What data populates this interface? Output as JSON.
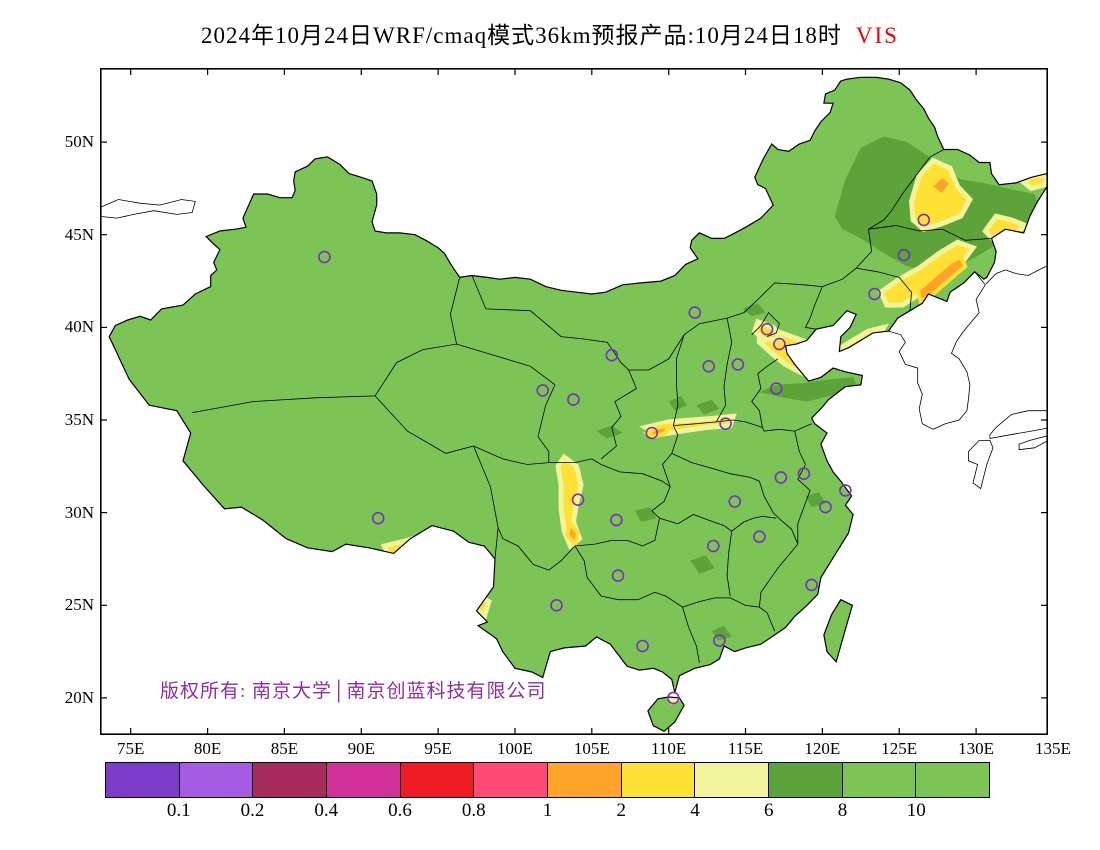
{
  "title": {
    "main": "2024年10月24日WRF/cmaq模式36km预报产品:10月24日18时",
    "highlight": "VIS"
  },
  "map": {
    "copyright": "版权所有: 南京大学│南京创蓝科技有限公司",
    "lat_ticks": [
      {
        "label": "50N",
        "deg": 50
      },
      {
        "label": "45N",
        "deg": 45
      },
      {
        "label": "40N",
        "deg": 40
      },
      {
        "label": "35N",
        "deg": 35
      },
      {
        "label": "30N",
        "deg": 30
      },
      {
        "label": "25N",
        "deg": 25
      },
      {
        "label": "20N",
        "deg": 20
      }
    ],
    "lon_ticks": [
      {
        "label": "75E",
        "deg": 75
      },
      {
        "label": "80E",
        "deg": 80
      },
      {
        "label": "85E",
        "deg": 85
      },
      {
        "label": "90E",
        "deg": 90
      },
      {
        "label": "95E",
        "deg": 95
      },
      {
        "label": "100E",
        "deg": 100
      },
      {
        "label": "105E",
        "deg": 105
      },
      {
        "label": "110E",
        "deg": 110
      },
      {
        "label": "115E",
        "deg": 115
      },
      {
        "label": "120E",
        "deg": 120
      },
      {
        "label": "125E",
        "deg": 125
      },
      {
        "label": "130E",
        "deg": 130
      },
      {
        "label": "135E",
        "deg": 135
      }
    ]
  },
  "colors": {
    "base_green": "#7CC455",
    "dark_green": "#5CA339",
    "yellow": "#FFE135",
    "pale_yellow": "#F2F49B",
    "orange": "#FFA428",
    "red": "#F42525",
    "marker_purple": "#7B2FBE",
    "copyright_purple": "#8A2FA8",
    "title_red": "#F50000",
    "line_black": "#000000",
    "ocean_white": "#FFFFFF"
  },
  "colorbar": {
    "labels": [
      "0.1",
      "0.2",
      "0.4",
      "0.6",
      "0.8",
      "1",
      "2",
      "4",
      "6",
      "8",
      "10"
    ],
    "colors": [
      "#7C3BC8",
      "#A55BE2",
      "#A62D5B",
      "#D23099",
      "#EF1C24",
      "#FF4A78",
      "#FFA428",
      "#FFE135",
      "#F2F49B",
      "#5CA339",
      "#7CC455",
      "#7CC455"
    ]
  },
  "chart_data": {
    "type": "heatmap",
    "title": "2024年10月24日WRF/cmaq模式36km预报产品:10月24日18时 VIS",
    "variable": "VIS",
    "model": "WRF/cmaq 36km",
    "forecast_date": "2024年10月24日",
    "valid_time": "10月24日18时",
    "lon_range": [
      73,
      135
    ],
    "lat_range": [
      18,
      54
    ],
    "lon_tick_labels": [
      "75E",
      "80E",
      "85E",
      "90E",
      "95E",
      "100E",
      "105E",
      "110E",
      "115E",
      "120E",
      "125E",
      "130E",
      "135E"
    ],
    "lat_tick_labels": [
      "50N",
      "45N",
      "40N",
      "35N",
      "30N",
      "25N",
      "20N"
    ],
    "levels": [
      0.1,
      0.2,
      0.4,
      0.6,
      0.8,
      1,
      2,
      4,
      6,
      8,
      10
    ],
    "level_colors": [
      "#7C3BC8",
      "#A55BE2",
      "#A62D5B",
      "#D23099",
      "#EF1C24",
      "#FF4A78",
      "#FFA428",
      "#FFE135",
      "#F2F49B",
      "#5CA339",
      "#7CC455",
      "#7CC455"
    ],
    "background_value": ">10 (green over most of China)",
    "low_visibility_regions": [
      {
        "region": "Northeast China plain (Heilongjiang/Jilin)",
        "vis_km": "2-8"
      },
      {
        "region": "Jilin-Liaoning border belt",
        "vis_km": "1-4"
      },
      {
        "region": "Hebei/Tianjin Bohai rim",
        "vis_km": "2-6"
      },
      {
        "region": "Shandong band",
        "vis_km": "6-8"
      },
      {
        "region": "Fenwei plain (S Shanxi / Guanzhong / N Henan)",
        "vis_km": "1-4"
      },
      {
        "region": "Western Sichuan basin edge",
        "vis_km": "1-4"
      },
      {
        "region": "Southeast Tibet valleys",
        "vis_km": "0.6-4"
      }
    ],
    "markers_lonlat": [
      [
        87.6,
        43.8
      ],
      [
        126.6,
        45.8
      ],
      [
        125.3,
        43.9
      ],
      [
        123.4,
        41.8
      ],
      [
        111.7,
        40.8
      ],
      [
        116.4,
        39.9
      ],
      [
        117.2,
        39.1
      ],
      [
        114.5,
        38.0
      ],
      [
        112.6,
        37.9
      ],
      [
        117.0,
        36.7
      ],
      [
        106.3,
        38.5
      ],
      [
        101.8,
        36.6
      ],
      [
        103.8,
        36.1
      ],
      [
        108.9,
        34.3
      ],
      [
        113.7,
        34.8
      ],
      [
        117.3,
        31.9
      ],
      [
        118.8,
        32.1
      ],
      [
        121.5,
        31.2
      ],
      [
        120.2,
        30.3
      ],
      [
        114.3,
        30.6
      ],
      [
        104.1,
        30.7
      ],
      [
        91.1,
        29.7
      ],
      [
        106.6,
        29.6
      ],
      [
        112.9,
        28.2
      ],
      [
        115.9,
        28.7
      ],
      [
        119.3,
        26.1
      ],
      [
        106.7,
        26.6
      ],
      [
        102.7,
        25.0
      ],
      [
        108.3,
        22.8
      ],
      [
        113.3,
        23.1
      ],
      [
        110.3,
        20.0
      ]
    ]
  }
}
